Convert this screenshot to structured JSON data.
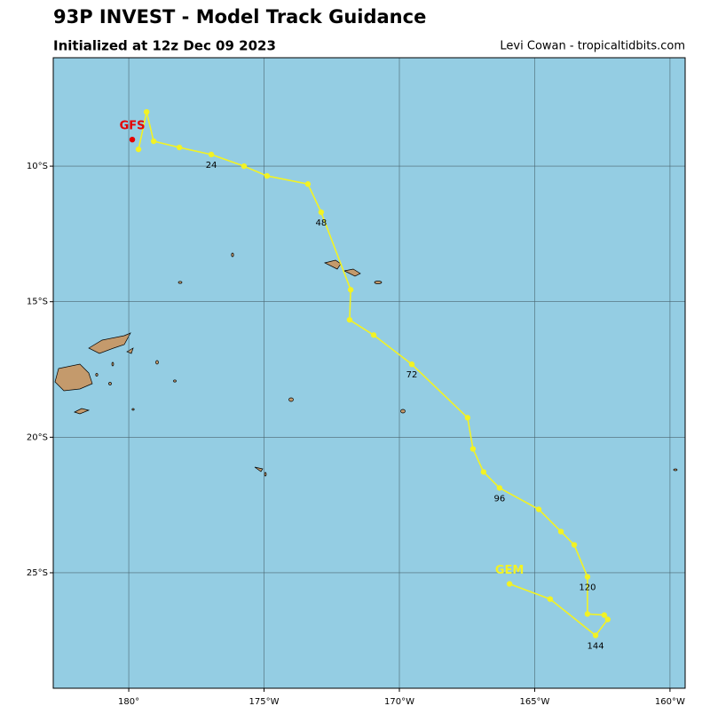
{
  "chart_data": {
    "type": "track-map",
    "title": "93P INVEST - Model Track Guidance",
    "subtitle": "Initialized at 12z Dec 09 2023",
    "credit": "Levi Cowan - tropicaltidbits.com",
    "xlim": [
      177.21,
      200.56
    ],
    "ylim": [
      -29.26,
      -6.0
    ],
    "xticks": [
      {
        "value": 180,
        "label": "180°"
      },
      {
        "value": 185,
        "label": "175°W"
      },
      {
        "value": 190,
        "label": "170°W"
      },
      {
        "value": 195,
        "label": "165°W"
      },
      {
        "value": 200,
        "label": "160°W"
      }
    ],
    "yticks": [
      {
        "value": -10,
        "label": "10°S"
      },
      {
        "value": -15,
        "label": "15°S"
      },
      {
        "value": -20,
        "label": "20°S"
      },
      {
        "value": -25,
        "label": "25°S"
      }
    ],
    "grid": true,
    "series": [
      {
        "name": "GEM",
        "color": "#f2f224",
        "x": [
          180.36,
          180.66,
          180.92,
          181.87,
          183.05,
          184.26,
          185.11,
          186.62,
          187.11,
          188.2,
          188.16,
          189.05,
          190.46,
          192.52,
          192.72,
          193.11,
          193.7,
          195.15,
          195.97,
          196.46,
          196.95,
          196.95,
          197.57,
          197.7,
          197.25,
          195.57,
          194.07
        ],
        "values": [
          -9.38,
          -8.0,
          -9.08,
          -9.31,
          -9.57,
          -10.0,
          -10.36,
          -10.66,
          -11.7,
          -14.56,
          -15.67,
          -16.23,
          -17.31,
          -19.28,
          -20.43,
          -21.28,
          -21.87,
          -22.66,
          -23.48,
          -23.97,
          -25.15,
          -26.52,
          -26.56,
          -26.72,
          -27.31,
          -25.97,
          -25.41
        ],
        "point_labels": [
          null,
          null,
          null,
          null,
          "24",
          null,
          null,
          null,
          "48",
          null,
          null,
          null,
          "72",
          null,
          null,
          null,
          "96",
          null,
          null,
          null,
          "120",
          null,
          null,
          null,
          "144",
          null,
          null
        ]
      },
      {
        "name": "GFS",
        "color": "#e60000",
        "x": [
          180.13
        ],
        "values": [
          -9.02
        ],
        "point_labels": [
          null
        ]
      }
    ]
  }
}
